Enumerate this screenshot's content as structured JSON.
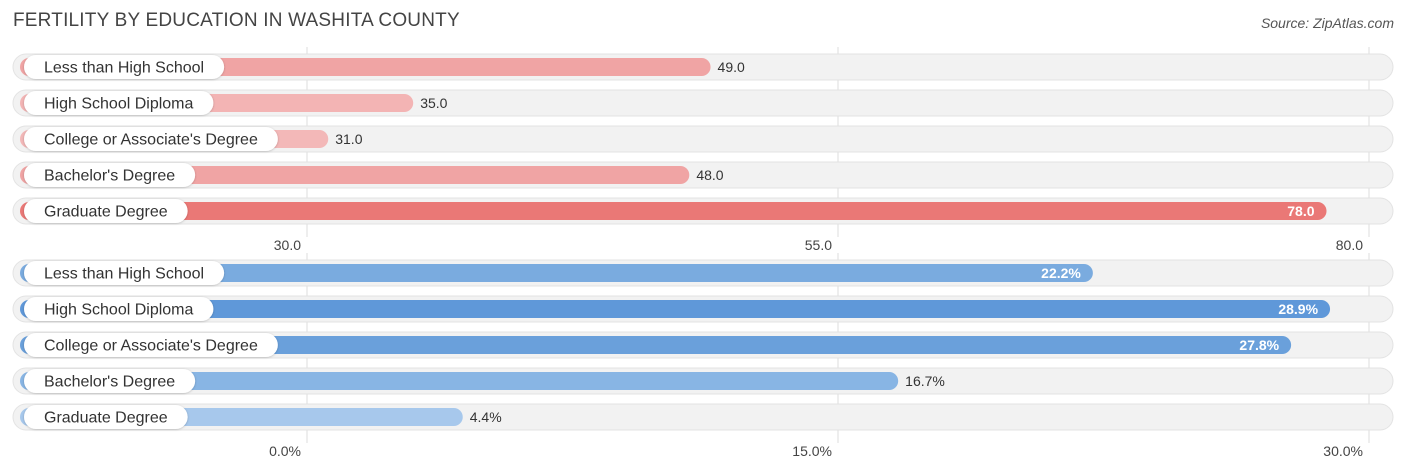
{
  "title": "FERTILITY BY EDUCATION IN WASHITA COUNTY",
  "source": "Source: ZipAtlas.com",
  "chart_data": [
    {
      "type": "bar",
      "orientation": "horizontal",
      "categories": [
        "Less than High School",
        "High School Diploma",
        "College or Associate's Degree",
        "Bachelor's Degree",
        "Graduate Degree"
      ],
      "values": [
        49.0,
        35.0,
        31.0,
        48.0,
        78.0
      ],
      "value_labels": [
        "49.0",
        "35.0",
        "31.0",
        "48.0",
        "78.0"
      ],
      "xlim": [
        30.0,
        80.0
      ],
      "ticks": [
        30.0,
        55.0,
        80.0
      ],
      "tick_labels": [
        "30.0",
        "55.0",
        "80.0"
      ],
      "colors": [
        "#f0a4a4",
        "#f3b4b4",
        "#f3b8b8",
        "#f0a4a4",
        "#ea7876"
      ],
      "grid": true
    },
    {
      "type": "bar",
      "orientation": "horizontal",
      "categories": [
        "Less than High School",
        "High School Diploma",
        "College or Associate's Degree",
        "Bachelor's Degree",
        "Graduate Degree"
      ],
      "values": [
        22.2,
        28.9,
        27.8,
        16.7,
        4.4
      ],
      "value_labels": [
        "22.2%",
        "28.9%",
        "27.8%",
        "16.7%",
        "4.4%"
      ],
      "xlim": [
        0.0,
        30.0
      ],
      "ticks": [
        0.0,
        15.0,
        30.0
      ],
      "tick_labels": [
        "0.0%",
        "15.0%",
        "30.0%"
      ],
      "colors": [
        "#7aabdf",
        "#5f98d9",
        "#6aa0db",
        "#88b5e4",
        "#a7c8ec"
      ],
      "grid": true
    }
  ]
}
